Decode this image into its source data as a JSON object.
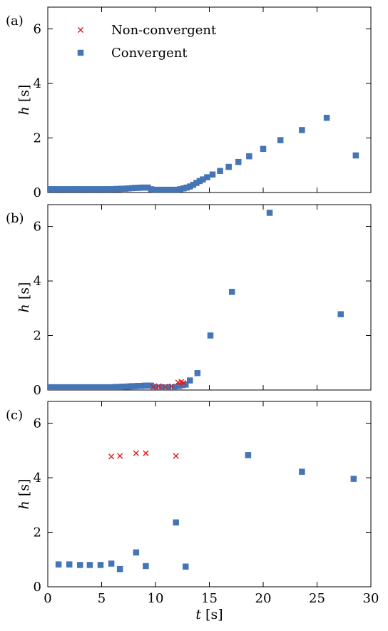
{
  "colors": {
    "convergent": "#4575b4",
    "non_convergent": "#e41a1c",
    "axes": "#000000"
  },
  "chart_data": [
    {
      "type": "scatter",
      "panel_label": "(a)",
      "xlabel": "",
      "ylabel": "h [s]",
      "xlim": [
        0,
        30
      ],
      "ylim": [
        0,
        6.8
      ],
      "xticks": [
        0,
        5,
        10,
        15,
        20,
        25,
        30
      ],
      "yticks": [
        0,
        2,
        4,
        6
      ],
      "show_x_tick_labels": false,
      "legend": {
        "placement": "top-left",
        "entries": [
          {
            "label": "Non-convergent",
            "marker": "x",
            "color": "#e41a1c"
          },
          {
            "label": "Convergent",
            "marker": "square",
            "color": "#4575b4"
          }
        ]
      },
      "series": [
        {
          "name": "Non-convergent",
          "marker": "x",
          "x": [],
          "y": []
        },
        {
          "name": "Convergent",
          "marker": "square",
          "x": [
            0.0,
            0.3,
            0.6,
            0.9,
            1.2,
            1.5,
            1.8,
            2.1,
            2.4,
            2.7,
            3.0,
            3.3,
            3.6,
            3.9,
            4.2,
            4.5,
            4.8,
            5.1,
            5.4,
            5.7,
            6.0,
            6.3,
            6.6,
            6.9,
            7.2,
            7.5,
            7.8,
            8.1,
            8.4,
            8.7,
            9.0,
            9.3,
            9.6,
            9.9,
            10.2,
            10.5,
            10.8,
            11.1,
            11.4,
            11.7,
            12.0,
            12.3,
            12.6,
            12.9,
            13.2,
            13.5,
            13.8,
            14.1,
            14.4,
            14.8,
            15.3,
            16.0,
            16.8,
            17.7,
            18.7,
            20.0,
            21.6,
            23.6,
            25.9,
            28.6
          ],
          "y": [
            0.12,
            0.12,
            0.12,
            0.12,
            0.12,
            0.12,
            0.12,
            0.12,
            0.12,
            0.12,
            0.12,
            0.12,
            0.12,
            0.12,
            0.12,
            0.12,
            0.12,
            0.12,
            0.12,
            0.12,
            0.12,
            0.13,
            0.13,
            0.14,
            0.14,
            0.15,
            0.16,
            0.17,
            0.17,
            0.18,
            0.18,
            0.18,
            0.12,
            0.1,
            0.1,
            0.1,
            0.1,
            0.1,
            0.1,
            0.1,
            0.1,
            0.12,
            0.15,
            0.18,
            0.22,
            0.28,
            0.35,
            0.42,
            0.48,
            0.56,
            0.66,
            0.79,
            0.94,
            1.12,
            1.33,
            1.6,
            1.92,
            2.29,
            2.74,
            1.36
          ]
        }
      ]
    },
    {
      "type": "scatter",
      "panel_label": "(b)",
      "xlabel": "",
      "ylabel": "h [s]",
      "xlim": [
        0,
        30
      ],
      "ylim": [
        0,
        6.8
      ],
      "xticks": [
        0,
        5,
        10,
        15,
        20,
        25,
        30
      ],
      "yticks": [
        0,
        2,
        4,
        6
      ],
      "show_x_tick_labels": false,
      "series": [
        {
          "name": "Non-convergent",
          "marker": "x",
          "x": [
            9.8,
            10.3,
            10.9,
            11.5,
            12.1,
            12.4,
            12.6
          ],
          "y": [
            0.12,
            0.14,
            0.12,
            0.13,
            0.28,
            0.3,
            0.26
          ]
        },
        {
          "name": "Convergent",
          "marker": "square",
          "x": [
            0.0,
            0.3,
            0.6,
            0.9,
            1.2,
            1.5,
            1.8,
            2.1,
            2.4,
            2.7,
            3.0,
            3.3,
            3.6,
            3.9,
            4.2,
            4.5,
            4.8,
            5.1,
            5.4,
            5.7,
            6.0,
            6.3,
            6.6,
            6.9,
            7.2,
            7.5,
            7.8,
            8.1,
            8.4,
            8.7,
            9.0,
            9.3,
            9.6,
            10.0,
            10.6,
            11.2,
            11.8,
            12.2,
            12.5,
            12.8,
            13.2,
            13.9,
            15.1,
            17.1,
            20.6,
            27.2
          ],
          "y": [
            0.1,
            0.1,
            0.1,
            0.1,
            0.1,
            0.1,
            0.1,
            0.1,
            0.1,
            0.1,
            0.1,
            0.1,
            0.1,
            0.1,
            0.1,
            0.1,
            0.1,
            0.1,
            0.1,
            0.1,
            0.1,
            0.11,
            0.11,
            0.12,
            0.12,
            0.13,
            0.14,
            0.14,
            0.15,
            0.15,
            0.16,
            0.16,
            0.16,
            0.1,
            0.1,
            0.1,
            0.1,
            0.15,
            0.18,
            0.2,
            0.35,
            0.62,
            2.0,
            3.6,
            6.5,
            2.78
          ]
        }
      ]
    },
    {
      "type": "scatter",
      "panel_label": "(c)",
      "xlabel": "t [s]",
      "ylabel": "h [s]",
      "xlim": [
        0,
        30
      ],
      "ylim": [
        0,
        6.8
      ],
      "xticks": [
        0,
        5,
        10,
        15,
        20,
        25,
        30
      ],
      "yticks": [
        0,
        2,
        4,
        6
      ],
      "show_x_tick_labels": true,
      "series": [
        {
          "name": "Non-convergent",
          "marker": "x",
          "x": [
            5.9,
            6.7,
            8.2,
            9.1,
            11.9
          ],
          "y": [
            4.78,
            4.8,
            4.9,
            4.9,
            4.8
          ]
        },
        {
          "name": "Convergent",
          "marker": "square",
          "x": [
            1.0,
            2.0,
            3.0,
            3.9,
            4.9,
            5.9,
            6.7,
            8.2,
            9.1,
            11.9,
            12.8,
            18.6,
            23.6,
            28.4
          ],
          "y": [
            0.82,
            0.82,
            0.8,
            0.8,
            0.8,
            0.85,
            0.65,
            1.26,
            0.76,
            2.36,
            0.74,
            4.83,
            4.22,
            3.96
          ]
        }
      ]
    }
  ]
}
